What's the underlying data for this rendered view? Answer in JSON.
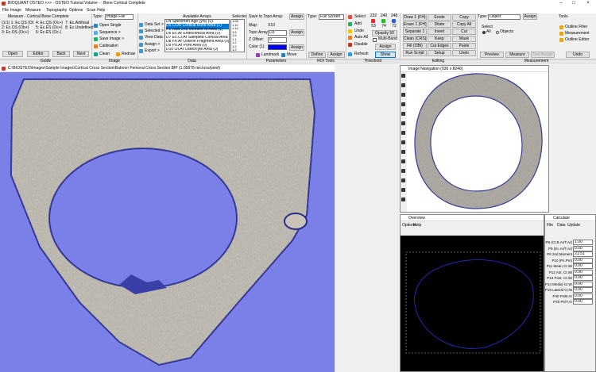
{
  "title_bar": "BIOQUANT OSTEO >>> - OSTEO Tutorial Volume - : Bone Cortical Complete",
  "menu": [
    "File",
    "Image",
    "Measure",
    "Topography",
    "Options",
    "Scan",
    "Help"
  ],
  "guide": {
    "header": "Measure - Cortical Bone Complete",
    "steps": [
      "(1/1) 1: Ec.QS (Ob+)",
      "2: Ec.OS (Ob+)",
      "3: Ec.OS (Oc+)",
      "4: Ec.QS (Oc+)",
      "5: Ec.ES (Oc+)",
      "6: Ec.ES (Oc-)",
      "7: Ec.Artificial",
      "8: Ec.Undefined"
    ],
    "buttons": [
      "Open",
      "Editor",
      "Back",
      "Next"
    ]
  },
  "image_panel": {
    "type_label": "Type:",
    "type_value": "Image File",
    "buttons": [
      "Open Single",
      "Sequence >",
      "Save Image >",
      "Calibration",
      "Clean",
      "Redraw"
    ]
  },
  "data_panel": {
    "buttons": [
      "Data Set >",
      "Selected >",
      "View Data >",
      "Assign >",
      "Export >"
    ],
    "arrays_header": "Available Arrays",
    "arrays": [
      "D4 Specimen Age (yrs) (0)",
      "D5 Ct.Ar Cortical Bone Area (1)",
      "P1 Raw 2nd Moment of Area (1)",
      "D6 Ec.Ar Endocortical Area (0)",
      "D7 Ec.Cr.Ar Sampled Cortical Area (0)",
      "D8 Fn.Ar Osteon Fragment Area (0)",
      "D9 Po.Ar Pore Area (0)",
      "D10 Ot.Ar Osteocyte Area (0)"
    ],
    "selected_header": "Selected",
    "selected": [
      "1/28",
      "1:10",
      "1:14",
      "1:9",
      "1:5",
      "1:1",
      "1:2",
      "1:2",
      "1:2"
    ]
  },
  "parameters": {
    "save_topo": "Save to Topo Array:",
    "map_label": "Map:",
    "map_value": "X10",
    "topo_label": "Topo Array:",
    "topo_value": "D3",
    "z_label": "Z Offset:",
    "z_value": "0",
    "color_label": "Color (1):",
    "assign": "Assign",
    "landmark": "Landmark",
    "move": "Move"
  },
  "roi_tools": {
    "type_label": "Type:",
    "type_value": "Full Screen",
    "define": "Define",
    "assign": "Assign"
  },
  "threshold": {
    "buttons": [
      "Select",
      "Add",
      "Undo",
      "Auto All",
      "Disable",
      "Refresh"
    ],
    "rgb": [
      "232",
      "240",
      "248",
      "53",
      "74",
      "72"
    ],
    "opacity": "Opacity 50",
    "multi_band": "Multi-Band",
    "assign": "Assign",
    "show": "Show"
  },
  "editing": {
    "buttons": [
      "Draw 1 (FH)",
      "Erase 1 (FH)",
      "Separate 1",
      "Clean (CRS)",
      "Fill (OBI)",
      "Run Script",
      "Erode",
      "Dilate",
      "Invert",
      "Keep",
      "Cut Edges",
      "Setup",
      "Copy",
      "Copy All",
      "Cut",
      "Mask",
      "Paste",
      "Undo"
    ]
  },
  "measurement": {
    "type_label": "Type:",
    "type_value": "Object",
    "assign": "Assign",
    "select": "Select",
    "all": "All",
    "objects": "Objects",
    "preview": "Preview",
    "measure": "Measure",
    "seq_assign": "Seq Assign",
    "tools": "Tools",
    "tool_items": [
      "Outline Filter",
      "Measurement",
      "Outline Editor"
    ],
    "undo": "Undo"
  },
  "section_labels": [
    "Guide",
    "Image",
    "Data",
    "Parameters",
    "ROI Tools",
    "Threshold",
    "Editing",
    "Measurement"
  ],
  "image_window": {
    "title": "C:\\BIOSTEO\\Images\\Sample Images\\Cortical Cross Section\\Baboon Femoral Cross Section.BIP (1.05878 microns/pixel)"
  },
  "navigation_window": {
    "title": "Image Navigation (936 x 8240)"
  },
  "overview_window": {
    "title": "Overview",
    "menu": [
      "Options",
      "Help"
    ]
  },
  "calculate_window": {
    "title": "Calculate",
    "menu": [
      "File",
      "Data",
      "Update"
    ],
    "rows": [
      [
        "P8 (Ct.B.Ar/T.Ar)",
        "1.00"
      ],
      [
        "P9 (Ec.Ar/T.Ar)",
        "0.00"
      ],
      [
        "P6 2nd Moment",
        "21.51"
      ],
      [
        "P10 (Ps.Pm)",
        "0.00"
      ],
      [
        "P11 Mean Ct.Wi",
        "0.00"
      ],
      [
        "P12 Ant. Ct.Wi",
        "0.00"
      ],
      [
        "P13 Post. Ct.Wi",
        "0.00"
      ],
      [
        "P14 Medial Ct.Wi",
        "0.00"
      ],
      [
        "P15 Lateral Ct.Wi",
        "0.00"
      ],
      [
        "P40 Ps/B.Ar",
        "0.00"
      ],
      [
        "P43 Ps/T.Ar",
        "0.00"
      ]
    ]
  }
}
